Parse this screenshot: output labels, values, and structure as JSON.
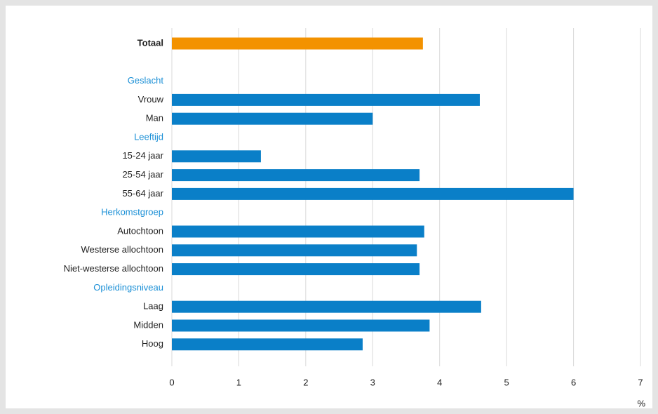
{
  "chart_data": {
    "type": "hbar",
    "categories": [
      "Totaal",
      null,
      "Geslacht",
      "Vrouw",
      "Man",
      "Leeftijd",
      "15-24 jaar",
      "25-54 jaar",
      "55-64 jaar",
      "Herkomstgroep",
      "Autochtoon",
      "Westerse allochtoon",
      "Niet-westerse allochtoon",
      "Opleidingsniveau",
      "Laag",
      "Midden",
      "Hoog"
    ],
    "values": [
      3.75,
      null,
      null,
      4.6,
      3.0,
      null,
      1.33,
      3.7,
      6.0,
      null,
      3.77,
      3.66,
      3.7,
      null,
      4.62,
      3.85,
      2.85
    ],
    "colors": [
      "#f39200",
      null,
      null,
      "#0a7fc8",
      "#0a7fc8",
      null,
      "#0a7fc8",
      "#0a7fc8",
      "#0a7fc8",
      null,
      "#0a7fc8",
      "#0a7fc8",
      "#0a7fc8",
      null,
      "#0a7fc8",
      "#0a7fc8",
      "#0a7fc8"
    ],
    "header_color": "#1a8fd6",
    "xlabel": "%",
    "xlim": [
      0,
      7
    ],
    "xticks": [
      0,
      1,
      2,
      3,
      4,
      5,
      6,
      7
    ],
    "grid": true
  }
}
